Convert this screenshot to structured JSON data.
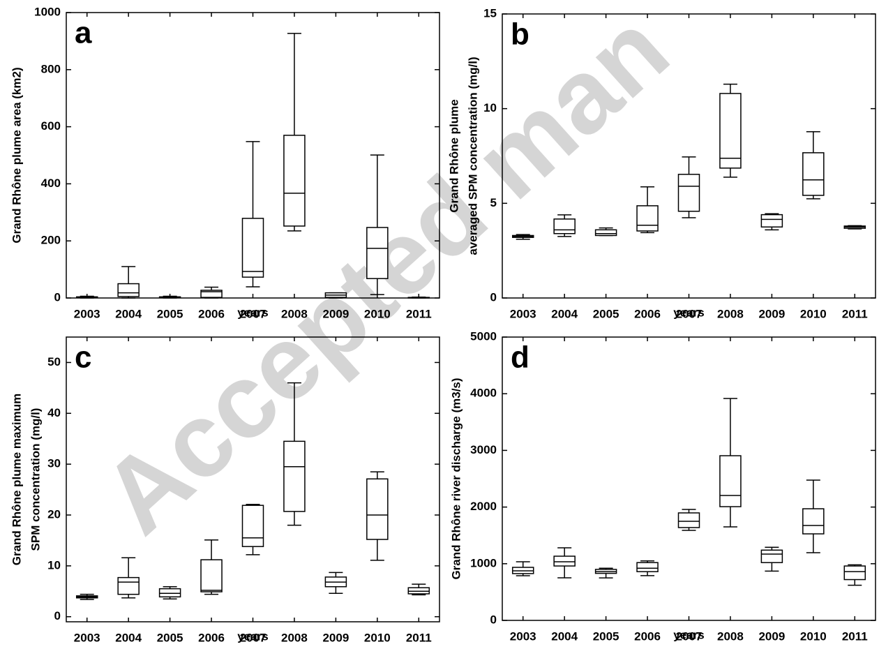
{
  "watermark": "Accepted man",
  "chart_data": [
    {
      "type": "box",
      "panel": "a",
      "ylabel": [
        "Grand Rhône plume area (km2)"
      ],
      "xlabel": "years",
      "categories": [
        "2003",
        "2004",
        "2005",
        "2006",
        "2007",
        "2008",
        "2009",
        "2010",
        "2011"
      ],
      "min": [
        0,
        0,
        0,
        0,
        39,
        235,
        0,
        12,
        0
      ],
      "q1": [
        1,
        5,
        1,
        2,
        73,
        252,
        2,
        68,
        0
      ],
      "median": [
        2,
        18,
        2,
        22,
        93,
        367,
        10,
        174,
        1
      ],
      "q3": [
        4,
        50,
        4,
        27,
        279,
        570,
        18,
        247,
        2
      ],
      "max": [
        6,
        110,
        6,
        38,
        548,
        927,
        18,
        501,
        3
      ],
      "ylim": [
        0,
        1000
      ],
      "yticks": [
        0,
        200,
        400,
        600,
        800,
        1000
      ]
    },
    {
      "type": "box",
      "panel": "b",
      "ylabel": [
        "Grand Rhône plume",
        "averaged SPM concentration (mg/l)"
      ],
      "xlabel": "years",
      "categories": [
        "2003",
        "2004",
        "2005",
        "2006",
        "2007",
        "2008",
        "2009",
        "2010",
        "2011"
      ],
      "min": [
        3.1,
        3.25,
        3.3,
        3.45,
        4.24,
        6.38,
        3.6,
        5.24,
        3.65
      ],
      "q1": [
        3.2,
        3.4,
        3.3,
        3.54,
        4.58,
        6.86,
        3.75,
        5.42,
        3.68
      ],
      "median": [
        3.25,
        3.6,
        3.4,
        3.84,
        5.9,
        7.38,
        4.15,
        6.24,
        3.75
      ],
      "q3": [
        3.3,
        4.17,
        3.6,
        4.87,
        6.53,
        10.8,
        4.4,
        7.67,
        3.8
      ],
      "max": [
        3.35,
        4.39,
        3.7,
        5.87,
        7.45,
        11.29,
        4.45,
        8.78,
        3.82
      ],
      "ylim": [
        0,
        15
      ],
      "yticks": [
        0,
        5,
        10,
        15
      ]
    },
    {
      "type": "box",
      "panel": "c",
      "ylabel": [
        "Grand Rhône plume maximum",
        "SPM concentration (mg/l)"
      ],
      "xlabel": "years",
      "categories": [
        "2003",
        "2004",
        "2005",
        "2006",
        "2007",
        "2008",
        "2009",
        "2010",
        "2011"
      ],
      "min": [
        3.4,
        3.7,
        3.5,
        4.4,
        12.2,
        18,
        4.6,
        11.1,
        4.3
      ],
      "q1": [
        3.7,
        4.4,
        3.9,
        4.9,
        13.8,
        20.7,
        5.9,
        15.2,
        4.5
      ],
      "median": [
        3.9,
        6.8,
        4.6,
        5.2,
        15.5,
        29.5,
        6.8,
        20,
        5
      ],
      "q3": [
        4.1,
        7.7,
        5.5,
        11.2,
        21.9,
        34.5,
        7.8,
        27.1,
        5.7
      ],
      "max": [
        4.4,
        11.6,
        5.9,
        15.1,
        22.1,
        46,
        8.7,
        28.5,
        6.4
      ],
      "ylim": [
        -1,
        55
      ],
      "yticks": [
        0,
        10,
        20,
        30,
        40,
        50
      ]
    },
    {
      "type": "box",
      "panel": "d",
      "ylabel": [
        "Grand Rhône river discharge (m3/s)"
      ],
      "xlabel": "years",
      "categories": [
        "2003",
        "2004",
        "2005",
        "2006",
        "2007",
        "2008",
        "2009",
        "2010",
        "2011"
      ],
      "min": [
        788,
        751,
        750,
        790,
        1589,
        1650,
        870,
        1195,
        620
      ],
      "q1": [
        826,
        960,
        830,
        860,
        1638,
        2007,
        1020,
        1527,
        720
      ],
      "median": [
        875,
        1034,
        860,
        920,
        1749,
        2204,
        1170,
        1675,
        860
      ],
      "q3": [
        936,
        1133,
        900,
        1020,
        1897,
        2906,
        1240,
        1970,
        960
      ],
      "max": [
        1034,
        1281,
        920,
        1050,
        1958,
        3916,
        1290,
        2475,
        980
      ],
      "ylim": [
        0,
        5000
      ],
      "yticks": [
        0,
        1000,
        2000,
        3000,
        4000,
        5000
      ]
    }
  ]
}
